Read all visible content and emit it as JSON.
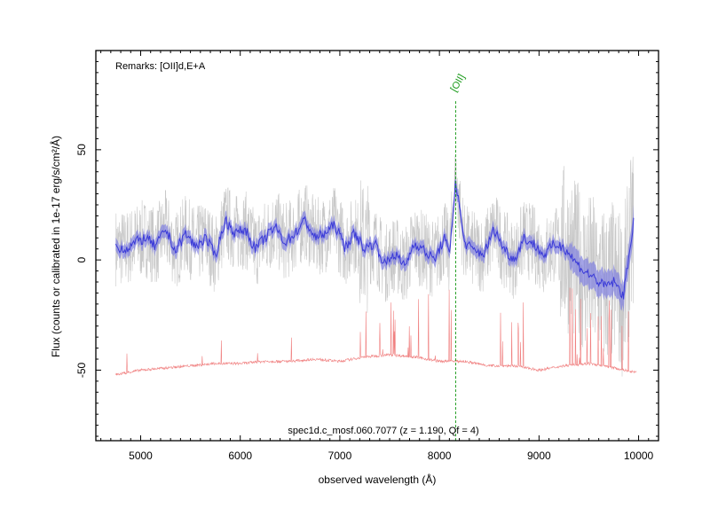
{
  "chart_data": {
    "type": "line",
    "xlabel": "observed wavelength (Å)",
    "ylabel": "Flux (counts or calibrated in 1e-17 erg/s/cm²/Å)",
    "xlim": [
      4550,
      10200
    ],
    "ylim": [
      -82,
      95
    ],
    "x_ticks": [
      5000,
      6000,
      7000,
      8000,
      9000,
      10000
    ],
    "y_ticks": [
      -50,
      0,
      50
    ],
    "remarks": "Remarks: [OII]d,E+A",
    "footer": "spec1d.c_mosf.060.7077 (z = 1.190, Qf = 4)",
    "line_marker": {
      "label": "[OII]",
      "wavelength": 8163
    },
    "colors": {
      "raw": "#c8c8c8",
      "smoothed": "#3a3ad8",
      "band": "#7a7ae0",
      "error": "#f08080",
      "marker": "#1a9a1a"
    },
    "series": [
      {
        "kind": "smoothed",
        "x": [
          4750,
          4850,
          4950,
          5050,
          5150,
          5250,
          5350,
          5450,
          5550,
          5650,
          5750,
          5850,
          5950,
          6050,
          6150,
          6250,
          6350,
          6450,
          6550,
          6650,
          6750,
          6850,
          6950,
          7050,
          7150,
          7250,
          7350,
          7450,
          7550,
          7650,
          7750,
          7850,
          7950,
          8050,
          8100,
          8163,
          8250,
          8350,
          8450,
          8550,
          8650,
          8750,
          8850,
          8950,
          9050,
          9150,
          9250,
          9350,
          9450,
          9550,
          9650,
          9750,
          9850,
          9950
        ],
        "y": [
          6,
          5,
          8,
          10,
          6,
          14,
          4,
          12,
          6,
          10,
          2,
          18,
          12,
          14,
          5,
          10,
          15,
          8,
          12,
          18,
          10,
          12,
          16,
          6,
          12,
          5,
          8,
          -2,
          3,
          -3,
          8,
          4,
          0,
          10,
          2,
          36,
          8,
          4,
          3,
          14,
          5,
          0,
          10,
          7,
          2,
          7,
          6,
          0,
          -5,
          -8,
          -12,
          -10,
          -16,
          18
        ]
      },
      {
        "kind": "error",
        "x": [
          4750,
          5000,
          5250,
          5500,
          5750,
          6000,
          6250,
          6500,
          6750,
          7000,
          7250,
          7500,
          7750,
          8000,
          8250,
          8500,
          8750,
          9000,
          9250,
          9500,
          9750,
          9980
        ],
        "y": [
          -52,
          -50,
          -49,
          -48,
          -47,
          -47,
          -46,
          -46,
          -45,
          -46,
          -44,
          -43,
          -44,
          -46,
          -46,
          -48,
          -48,
          -50,
          -48,
          -47,
          -49,
          -51
        ]
      }
    ]
  }
}
